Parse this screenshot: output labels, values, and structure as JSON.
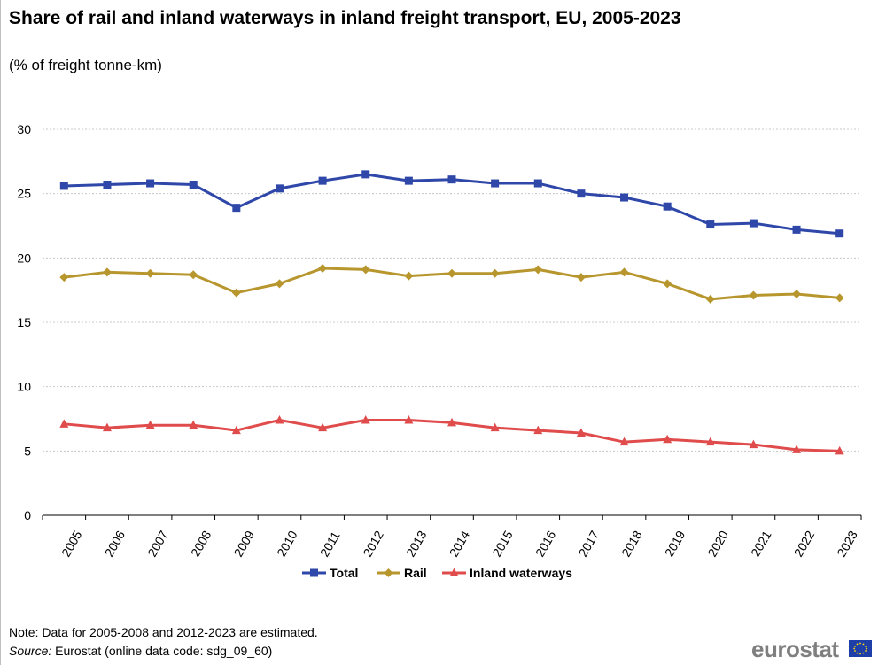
{
  "title": "Share of rail and inland waterways in inland freight transport, EU, 2005-2023",
  "subtitle": "(% of freight tonne-km)",
  "note": "Note: Data for 2005-2008 and 2012-2023 are estimated.",
  "source_label": "Source:",
  "source_text": "Eurostat (online data code: sdg_09_60)",
  "logo_text": "eurostat",
  "chart_data": {
    "type": "line",
    "title": "Share of rail and inland waterways in inland freight transport, EU, 2005-2023",
    "subtitle": "(% of freight tonne-km)",
    "xlabel": "",
    "ylabel": "",
    "ylim": [
      0,
      30
    ],
    "yticks": [
      0,
      5,
      10,
      15,
      20,
      25,
      30
    ],
    "grid": true,
    "legend_position": "bottom",
    "categories": [
      "2005",
      "2006",
      "2007",
      "2008",
      "2009",
      "2010",
      "2011",
      "2012",
      "2013",
      "2014",
      "2015",
      "2016",
      "2017",
      "2018",
      "2019",
      "2020",
      "2021",
      "2022",
      "2023"
    ],
    "series": [
      {
        "name": "Total",
        "color": "#2e47a8",
        "marker": "square",
        "values": [
          25.6,
          25.7,
          25.8,
          25.7,
          23.9,
          25.4,
          26.0,
          26.5,
          26.0,
          26.1,
          25.8,
          25.8,
          25.0,
          24.7,
          24.0,
          22.6,
          22.7,
          22.2,
          21.9
        ]
      },
      {
        "name": "Rail",
        "color": "#b8962e",
        "marker": "diamond",
        "values": [
          18.5,
          18.9,
          18.8,
          18.7,
          17.3,
          18.0,
          19.2,
          19.1,
          18.6,
          18.8,
          18.8,
          19.1,
          18.5,
          18.9,
          18.0,
          16.8,
          17.1,
          17.2,
          16.9
        ]
      },
      {
        "name": "Inland waterways",
        "color": "#e04b4b",
        "marker": "triangle",
        "values": [
          7.1,
          6.8,
          7.0,
          7.0,
          6.6,
          7.4,
          6.8,
          7.4,
          7.4,
          7.2,
          6.8,
          6.6,
          6.4,
          5.7,
          5.9,
          5.7,
          5.5,
          5.1,
          5.0
        ]
      }
    ]
  }
}
